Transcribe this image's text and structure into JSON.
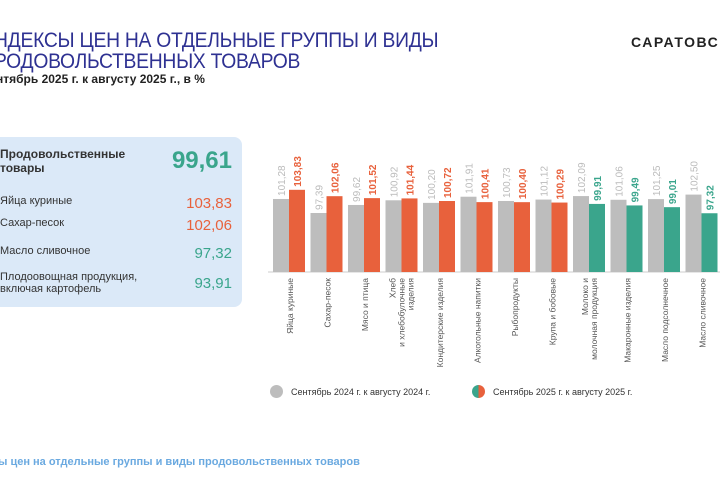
{
  "header": {
    "title_line1": "НДЕКСЫ ЦЕН НА ОТДЕЛЬНЫЕ ГРУППЫ И ВИДЫ",
    "title_line2": "РОДОВОЛЬСТВЕННЫХ ТОВАРОВ",
    "subtitle": "нтябрь 2025 г. к августу 2025 г., в %",
    "brand": "САРАТОВС"
  },
  "panel": {
    "rows": [
      {
        "label": "Продовольственные товары",
        "value": "99,61",
        "color": "#3aa58c"
      },
      {
        "label": "Яйца куриные",
        "value": "103,83",
        "color": "#e8613c"
      },
      {
        "label": "Сахар-песок",
        "value": "102,06",
        "color": "#e8613c"
      },
      {
        "label": "Масло сливочное",
        "value": "97,32",
        "color": "#3aa58c"
      },
      {
        "label": "Плодоовощная продукция, включая картофель",
        "value": "93,91",
        "color": "#3aa58c"
      }
    ]
  },
  "footer": "ы цен на отдельные группы и виды продовольственных товаров",
  "chart_data": {
    "type": "bar",
    "categories": [
      "Яйца куриные",
      "Сахар-песок",
      "Мясо и птица",
      "Хлеб и хлебобулочные изделия",
      "Кондитерские изделия",
      "Алкогольные напитки",
      "Рыбопродукты",
      "Крупа и бобовые",
      "Молоко и молочная продукция",
      "Макаронные изделия",
      "Масло подсолнечное",
      "Масло сливочное"
    ],
    "series": [
      {
        "name": "Сентябрь 2024 г. к августу 2024 г.",
        "color": "#bdbdbd",
        "values": [
          101.28,
          97.39,
          99.62,
          100.92,
          100.2,
          101.91,
          100.73,
          101.12,
          102.09,
          101.06,
          101.25,
          102.5
        ]
      },
      {
        "name": "Сентябрь 2025 г. к августу 2025 г.",
        "color_up": "#e8613c",
        "color_down": "#3aa58c",
        "values": [
          103.83,
          102.06,
          101.52,
          101.44,
          100.72,
          100.41,
          100.4,
          100.29,
          99.91,
          99.49,
          99.01,
          97.32
        ]
      }
    ],
    "ylim": [
      81,
      106
    ],
    "grid": false,
    "legend": "bottom"
  }
}
